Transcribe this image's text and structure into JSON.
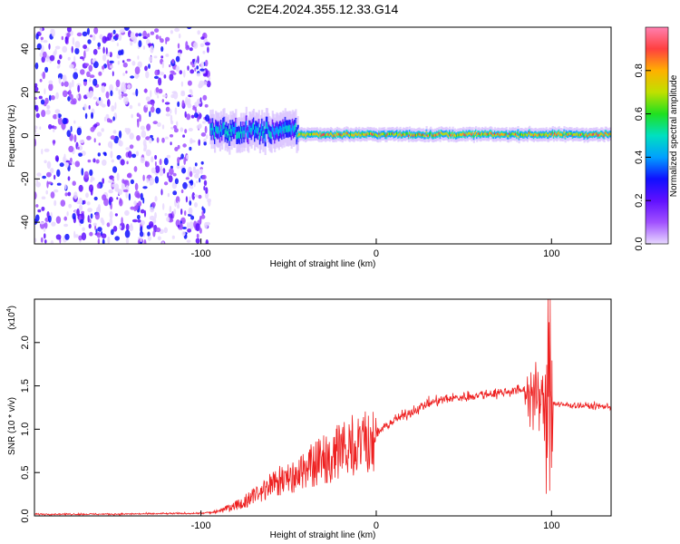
{
  "title": "C2E4.2024.355.12.33.G14",
  "chart_data": [
    {
      "type": "heatmap",
      "xlabel": "Height of straight line (km)",
      "ylabel": "Frequency (Hz)",
      "xlim": [
        -195,
        134
      ],
      "ylim": [
        -50,
        50
      ],
      "xticks": [
        -100,
        0,
        100
      ],
      "xtick_labels": [
        "-100",
        "0",
        "100"
      ],
      "yticks": [
        -40,
        -20,
        0,
        20,
        40
      ],
      "ytick_labels": [
        "-40",
        "-20",
        "0",
        "20",
        "40"
      ],
      "colorbar": {
        "label": "Normalized spectral amplitude",
        "range": [
          0,
          1
        ],
        "ticks": [
          0.0,
          0.2,
          0.4,
          0.6,
          0.8
        ],
        "tick_labels": [
          "0.0",
          "0.2",
          "0.4",
          "0.6",
          "0.8"
        ],
        "colors": [
          "#e8d8ff",
          "#a050ff",
          "#6010ff",
          "#1010ff",
          "#00a0ff",
          "#00e0c0",
          "#20e020",
          "#c0e000",
          "#ffb000",
          "#ff4040",
          "#ff80b0"
        ]
      },
      "segments": [
        {
          "region": "noise",
          "x": [
            -195,
            -95
          ],
          "frequency_spread": [
            -50,
            50
          ],
          "amplitude": "low-mid"
        },
        {
          "region": "onset",
          "x": [
            -95,
            -45
          ],
          "frequency_center": 2,
          "frequency_halfwidth": 8,
          "amplitude": "mid"
        },
        {
          "region": "stable",
          "x": [
            -45,
            134
          ],
          "frequency_center": 0.5,
          "frequency_halfwidth": 3,
          "amplitude": "high"
        }
      ],
      "grid": false
    },
    {
      "type": "line",
      "xlabel": "Height of straight line (km)",
      "ylabel": "SNR (10 * v/v)",
      "y_scale_label": "(x10^4)",
      "xlim": [
        -195,
        134
      ],
      "ylim": [
        0,
        2.5
      ],
      "xticks": [
        -100,
        0,
        100
      ],
      "xtick_labels": [
        "-100",
        "0",
        "100"
      ],
      "yticks": [
        0.0,
        0.5,
        1.0,
        1.5,
        2.0
      ],
      "ytick_labels": [
        "0.0",
        "0.5",
        "1.0",
        "1.5",
        "2.0"
      ],
      "series": [
        {
          "color": "#ee2020",
          "x": [
            -195,
            -150,
            -100,
            -90,
            -80,
            -70,
            -60,
            -50,
            -40,
            -30,
            -20,
            -10,
            0,
            10,
            20,
            30,
            40,
            50,
            60,
            70,
            80,
            85,
            90,
            95,
            98,
            99,
            100,
            102,
            105,
            110,
            120,
            134
          ],
          "y": [
            0.02,
            0.02,
            0.03,
            0.05,
            0.12,
            0.22,
            0.35,
            0.45,
            0.55,
            0.65,
            0.75,
            0.85,
            0.95,
            1.1,
            1.2,
            1.3,
            1.35,
            1.37,
            1.4,
            1.42,
            1.45,
            1.45,
            1.4,
            1.3,
            1.2,
            1.2,
            1.3,
            1.3,
            1.28,
            1.28,
            1.27,
            1.26
          ]
        }
      ],
      "grid": false
    }
  ]
}
